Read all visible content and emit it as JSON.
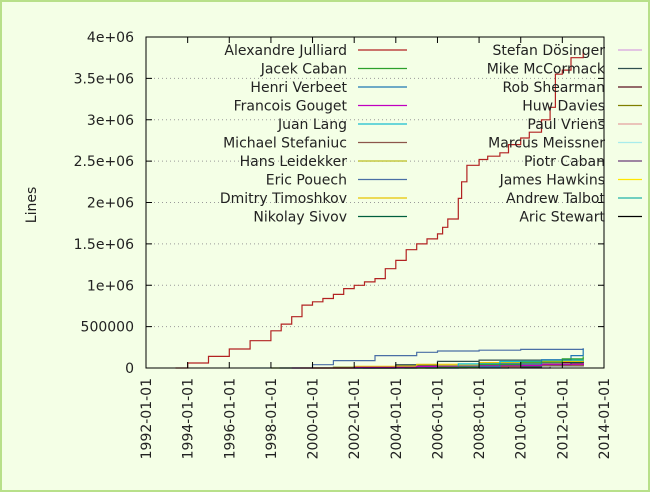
{
  "chart_data": {
    "type": "line",
    "title": "",
    "xlabel": "",
    "ylabel": "Lines",
    "xlim": [
      "1992-01-01",
      "2014-01-01"
    ],
    "ylim": [
      0,
      4000000
    ],
    "x_ticks": [
      "1992-01-01",
      "1994-01-01",
      "1996-01-01",
      "1998-01-01",
      "2000-01-01",
      "2002-01-01",
      "2004-01-01",
      "2006-01-01",
      "2008-01-01",
      "2010-01-01",
      "2012-01-01",
      "2014-01-01"
    ],
    "y_ticks": [
      0,
      500000,
      1000000,
      1500000,
      2000000,
      2500000,
      3000000,
      3500000,
      4000000
    ],
    "y_tick_labels": [
      "0",
      "500000",
      "1e+06",
      "1.5e+06",
      "2e+06",
      "2.5e+06",
      "3e+06",
      "3.5e+06",
      "4e+06"
    ],
    "grid": "horizontal, dotted",
    "legend_placement": "top, inside, two columns",
    "series": [
      {
        "name": "Alexandre Julliard",
        "color": "#b22222",
        "x": [
          "1993-06-01",
          "1994-01-01",
          "1995-01-01",
          "1996-01-01",
          "1997-01-01",
          "1998-01-01",
          "1998-07-01",
          "1999-01-01",
          "1999-07-01",
          "2000-01-01",
          "2000-07-01",
          "2001-01-01",
          "2001-07-01",
          "2002-01-01",
          "2002-07-01",
          "2003-01-01",
          "2003-07-01",
          "2004-01-01",
          "2004-07-01",
          "2005-01-01",
          "2005-07-01",
          "2006-01-01",
          "2006-04-01",
          "2006-07-01",
          "2007-01-01",
          "2007-03-01",
          "2007-06-01",
          "2008-01-01",
          "2008-06-01",
          "2009-01-01",
          "2009-06-01",
          "2010-01-01",
          "2010-06-01",
          "2011-01-01",
          "2011-06-01",
          "2011-09-01",
          "2012-01-01",
          "2012-06-01",
          "2013-01-01"
        ],
        "values": [
          0,
          60000,
          140000,
          230000,
          330000,
          450000,
          530000,
          620000,
          760000,
          800000,
          840000,
          890000,
          960000,
          1000000,
          1040000,
          1080000,
          1200000,
          1300000,
          1430000,
          1500000,
          1560000,
          1620000,
          1700000,
          1800000,
          2050000,
          2250000,
          2450000,
          2520000,
          2560000,
          2600000,
          2700000,
          2780000,
          2850000,
          3000000,
          3150000,
          3550000,
          3600000,
          3750000,
          3850000
        ]
      },
      {
        "name": "Jacek Caban",
        "color": "#2ca02c",
        "x": [
          "2004-06-01",
          "2006-01-01",
          "2008-01-01",
          "2010-01-01",
          "2012-01-01",
          "2013-01-01"
        ],
        "values": [
          0,
          10000,
          40000,
          70000,
          110000,
          140000
        ]
      },
      {
        "name": "Henri Verbeet",
        "color": "#1f77b4",
        "x": [
          "2005-06-01",
          "2007-01-01",
          "2009-01-01",
          "2011-01-01",
          "2012-06-01",
          "2013-01-01"
        ],
        "values": [
          0,
          15000,
          50000,
          100000,
          150000,
          230000
        ]
      },
      {
        "name": "Francois Gouget",
        "color": "#c000c0",
        "x": [
          "1999-01-01",
          "2002-01-01",
          "2005-01-01",
          "2008-01-01",
          "2011-01-01",
          "2013-01-01"
        ],
        "values": [
          0,
          8000,
          18000,
          30000,
          45000,
          60000
        ]
      },
      {
        "name": "Juan Lang",
        "color": "#17becf",
        "x": [
          "2002-01-01",
          "2005-01-01",
          "2007-01-01",
          "2009-01-01",
          "2011-01-01",
          "2013-01-01"
        ],
        "values": [
          0,
          15000,
          50000,
          80000,
          95000,
          100000
        ]
      },
      {
        "name": "Michael Stefaniuc",
        "color": "#8c564b",
        "x": [
          "2001-01-01",
          "2004-01-01",
          "2007-01-01",
          "2010-01-01",
          "2013-01-01"
        ],
        "values": [
          0,
          8000,
          18000,
          28000,
          38000
        ]
      },
      {
        "name": "Hans Leidekker",
        "color": "#bcbd22",
        "x": [
          "2003-01-01",
          "2006-01-01",
          "2009-01-01",
          "2011-01-01",
          "2013-01-01"
        ],
        "values": [
          0,
          20000,
          60000,
          90000,
          120000
        ]
      },
      {
        "name": "Eric Pouech",
        "color": "#4a6fa5",
        "x": [
          "1998-06-01",
          "2000-01-01",
          "2001-01-01",
          "2003-01-01",
          "2005-01-01",
          "2006-01-01",
          "2008-01-01",
          "2010-01-01",
          "2013-01-01"
        ],
        "values": [
          0,
          40000,
          90000,
          150000,
          190000,
          205000,
          215000,
          225000,
          240000
        ]
      },
      {
        "name": "Dmitry Timoshkov",
        "color": "#e6c300",
        "x": [
          "1999-06-01",
          "2002-01-01",
          "2005-01-01",
          "2008-01-01",
          "2011-01-01",
          "2013-01-01"
        ],
        "values": [
          0,
          20000,
          45000,
          65000,
          80000,
          90000
        ]
      },
      {
        "name": "Nikolay Sivov",
        "color": "#005f3f",
        "x": [
          "2008-01-01",
          "2009-06-01",
          "2011-01-01",
          "2012-06-01",
          "2013-01-01"
        ],
        "values": [
          0,
          20000,
          45000,
          70000,
          90000
        ]
      },
      {
        "name": "Stefan Dösinger",
        "color": "#d7a2e0",
        "x": [
          "2006-01-01",
          "2008-01-01",
          "2010-01-01",
          "2012-01-01",
          "2013-01-01"
        ],
        "values": [
          0,
          40000,
          70000,
          100000,
          110000
        ]
      },
      {
        "name": "Mike McCormack",
        "color": "#2f4f4f",
        "x": [
          "2002-01-01",
          "2004-01-01",
          "2006-01-01",
          "2008-01-01",
          "2013-01-01"
        ],
        "values": [
          0,
          40000,
          80000,
          95000,
          100000
        ]
      },
      {
        "name": "Rob Shearman",
        "color": "#5a1020",
        "x": [
          "2002-06-01",
          "2005-01-01",
          "2008-01-01",
          "2010-01-01",
          "2013-01-01"
        ],
        "values": [
          0,
          20000,
          55000,
          65000,
          70000
        ]
      },
      {
        "name": "Huw Davies",
        "color": "#7f7f00",
        "x": [
          "1998-01-01",
          "2001-01-01",
          "2004-01-01",
          "2008-01-01",
          "2013-01-01"
        ],
        "values": [
          0,
          10000,
          25000,
          45000,
          70000
        ]
      },
      {
        "name": "Paul Vriens",
        "color": "#e3a0a0",
        "x": [
          "2006-06-01",
          "2008-01-01",
          "2010-01-01",
          "2013-01-01"
        ],
        "values": [
          0,
          15000,
          25000,
          30000
        ]
      },
      {
        "name": "Marcus Meissner",
        "color": "#a8ecec",
        "x": [
          "1997-01-01",
          "2001-01-01",
          "2005-01-01",
          "2009-01-01",
          "2013-01-01"
        ],
        "values": [
          0,
          8000,
          15000,
          22000,
          28000
        ]
      },
      {
        "name": "Piotr Caban",
        "color": "#6b3d7a",
        "x": [
          "2010-01-01",
          "2011-06-01",
          "2012-06-01",
          "2013-01-01"
        ],
        "values": [
          0,
          30000,
          60000,
          80000
        ]
      },
      {
        "name": "James Hawkins",
        "color": "#ffe600",
        "x": [
          "2005-01-01",
          "2006-06-01",
          "2008-01-01",
          "2013-01-01"
        ],
        "values": [
          0,
          20000,
          30000,
          35000
        ]
      },
      {
        "name": "Andrew Talbot",
        "color": "#20b2aa",
        "x": [
          "2006-01-01",
          "2007-06-01",
          "2009-01-01",
          "2013-01-01"
        ],
        "values": [
          0,
          15000,
          22000,
          25000
        ]
      },
      {
        "name": "Aric Stewart",
        "color": "#000000",
        "x": [
          "2000-01-01",
          "2004-01-01",
          "2008-01-01",
          "2011-01-01",
          "2013-01-01"
        ],
        "values": [
          0,
          5000,
          15000,
          30000,
          50000
        ]
      }
    ]
  }
}
